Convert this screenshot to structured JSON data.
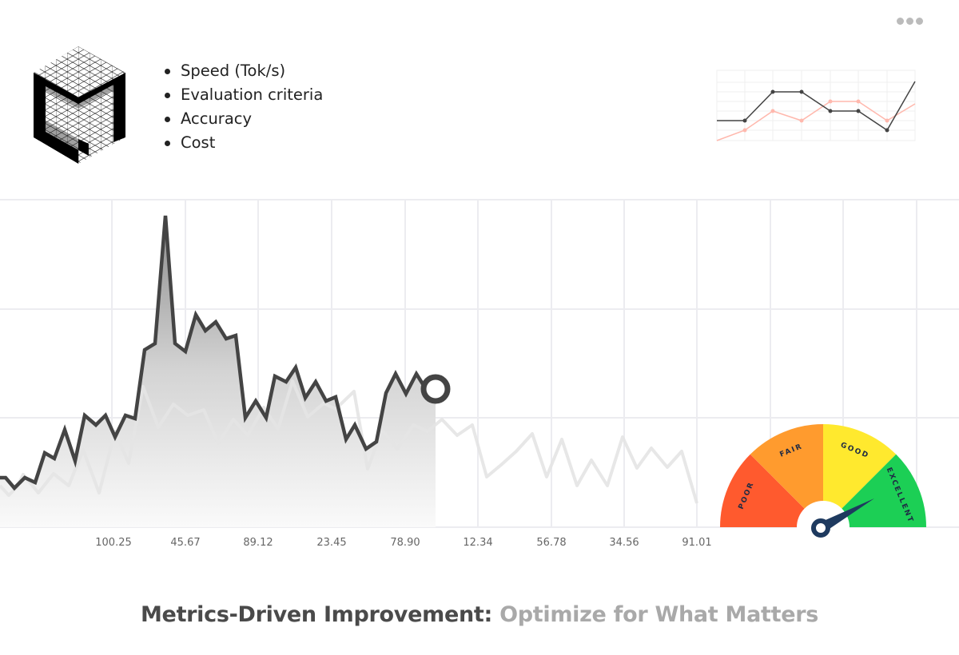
{
  "bullets": [
    "Speed (Tok/s)",
    "Evaluation criteria",
    "Accuracy",
    "Cost"
  ],
  "menu": {
    "icon": "more-horizontal-icon"
  },
  "axis_ticks": [
    "100.25",
    "45.67",
    "89.12",
    "23.45",
    "78.90",
    "12.34",
    "56.78",
    "34.56",
    "91.01"
  ],
  "gauge": {
    "labels": [
      "POOR",
      "FAIR",
      "GOOD",
      "EXCELLENT"
    ],
    "colors": [
      "#ff5a2e",
      "#ff9b2e",
      "#ffe92e",
      "#1ccf55"
    ],
    "needle_color": "#1e3a5f",
    "needle_level": "EXCELLENT"
  },
  "colors": {
    "main_line": "#444444",
    "secondary_line": "#e4e4e4",
    "mini_dark": "#444444",
    "mini_pink": "#ffb8ad"
  },
  "footer": {
    "title_dark": "Metrics-Driven Improvement:",
    "title_light": " Optimize for What Matters"
  }
}
